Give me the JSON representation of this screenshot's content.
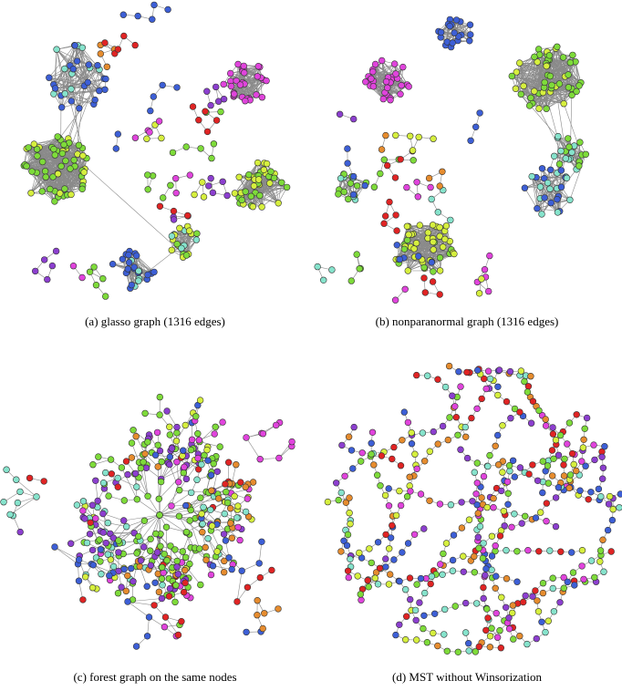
{
  "panels": [
    {
      "caption": "(a) glasso graph (1316 edges)"
    },
    {
      "caption": "(b) nonparanormal graph (1316 edges)"
    },
    {
      "caption": "(c) forest graph on the same nodes"
    },
    {
      "caption": "(d) MST without Winsorization"
    }
  ]
}
